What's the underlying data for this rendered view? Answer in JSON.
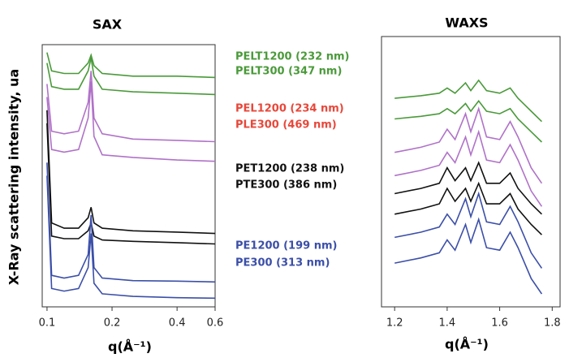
{
  "chart_data": [
    {
      "type": "line",
      "title": "SAX",
      "ylabel": "X-Ray scattering intensity, ua",
      "xlabel": "q(Å⁻¹)",
      "log_x": true,
      "xlim": [
        0.095,
        0.6
      ],
      "xticks": [
        0.1,
        0.2,
        0.4,
        0.6
      ],
      "ylim": [
        0,
        100
      ],
      "x": [
        0.1,
        0.105,
        0.12,
        0.14,
        0.155,
        0.16,
        0.165,
        0.18,
        0.25,
        0.4,
        0.6
      ],
      "series": [
        {
          "name": "PELT1200 (232 nm)",
          "color": "#4a9a3a",
          "label_color": "#4a9a3a",
          "values": [
            97,
            90,
            89,
            89,
            93,
            96,
            92,
            89,
            88,
            88,
            87.5
          ]
        },
        {
          "name": "PELT300 (347 nm)",
          "color": "#4a9a3a",
          "label_color": "#4a9a3a",
          "values": [
            93,
            84,
            83,
            83,
            90,
            95,
            88,
            83,
            82,
            81.5,
            81
          ]
        },
        {
          "name": "PEL1200 (234 nm)",
          "color": "#b072c8",
          "label_color": "#e8473a",
          "values": [
            85,
            67,
            66,
            67,
            78,
            90,
            72,
            66,
            64,
            63.5,
            63
          ]
        },
        {
          "name": "PLE300 (469 nm)",
          "color": "#b072c8",
          "label_color": "#e8473a",
          "values": [
            80,
            60,
            59,
            60,
            72,
            86,
            65,
            58,
            57,
            56,
            55.5
          ]
        },
        {
          "name": "PET1200 (238 nm)",
          "color": "#111111",
          "label_color": "#111111",
          "values": [
            75,
            32,
            30,
            30,
            34,
            38,
            32,
            30,
            29,
            28.5,
            28
          ]
        },
        {
          "name": "PTE300 (386 nm)",
          "color": "#111111",
          "label_color": "#111111",
          "values": [
            70,
            27,
            26,
            26,
            29,
            32,
            27,
            25.5,
            25,
            24.5,
            24
          ]
        },
        {
          "name": "PE1200 (199 nm)",
          "color": "#3b4fa8",
          "label_color": "#3b4fa8",
          "values": [
            55,
            12,
            11,
            12,
            20,
            35,
            15,
            11,
            10,
            9.8,
            9.5
          ]
        },
        {
          "name": "PE300 (313 nm)",
          "color": "#3b4fa8",
          "label_color": "#3b4fa8",
          "values": [
            50,
            7,
            6,
            7,
            15,
            28,
            9,
            5,
            4,
            3.5,
            3.3
          ]
        }
      ]
    },
    {
      "type": "line",
      "title": "WAXS",
      "xlabel": "q(Å⁻¹)",
      "xlim": [
        1.15,
        1.83
      ],
      "xticks": [
        1.2,
        1.4,
        1.6,
        1.8
      ],
      "ylim": [
        -5,
        100
      ],
      "x": [
        1.2,
        1.3,
        1.37,
        1.4,
        1.43,
        1.47,
        1.49,
        1.52,
        1.55,
        1.6,
        1.64,
        1.67,
        1.72,
        1.76
      ],
      "series": [
        {
          "color": "#4a9a3a",
          "values": [
            76,
            77,
            78,
            80,
            78,
            82,
            79,
            83,
            79,
            78,
            80,
            76,
            71,
            67
          ]
        },
        {
          "color": "#4a9a3a",
          "values": [
            68,
            69,
            70,
            72,
            70,
            74,
            71,
            75,
            71,
            70,
            72,
            68,
            63,
            59
          ]
        },
        {
          "color": "#b072c8",
          "values": [
            55,
            57,
            59,
            64,
            60,
            70,
            63,
            72,
            61,
            60,
            67,
            61,
            49,
            43
          ]
        },
        {
          "color": "#b072c8",
          "values": [
            46,
            48,
            50,
            55,
            51,
            61,
            54,
            63,
            52,
            51,
            58,
            52,
            40,
            34
          ]
        },
        {
          "color": "#111111",
          "values": [
            39,
            41,
            43,
            49,
            44,
            49,
            44,
            51,
            43,
            43,
            47,
            41,
            35,
            31
          ]
        },
        {
          "color": "#111111",
          "values": [
            31,
            33,
            35,
            41,
            36,
            41,
            36,
            43,
            35,
            35,
            39,
            33,
            27,
            23
          ]
        },
        {
          "color": "#3b4fa8",
          "values": [
            22,
            24,
            26,
            31,
            27,
            37,
            30,
            39,
            28,
            27,
            34,
            28,
            16,
            10
          ]
        },
        {
          "color": "#3b4fa8",
          "values": [
            12,
            14,
            16,
            21,
            17,
            27,
            20,
            29,
            18,
            17,
            24,
            18,
            6,
            0
          ]
        }
      ]
    }
  ]
}
